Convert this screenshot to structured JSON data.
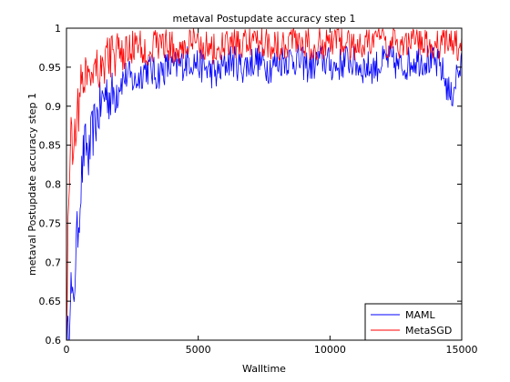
{
  "chart_data": {
    "type": "line",
    "title": "metaval Postupdate accuracy step 1",
    "xlabel": "Walltime",
    "ylabel": "metaval Postupdate accuracy step 1",
    "xlim": [
      0,
      15000
    ],
    "ylim": [
      0.6,
      1.0
    ],
    "x_ticks": [
      0,
      5000,
      10000,
      15000
    ],
    "x_tick_labels": [
      "0",
      "5000",
      "10000",
      "15000"
    ],
    "y_ticks": [
      0.6,
      0.65,
      0.7,
      0.75,
      0.8,
      0.85,
      0.9,
      0.95,
      1.0
    ],
    "y_tick_labels": [
      "0.6",
      "0.65",
      "0.7",
      "0.75",
      "0.8",
      "0.85",
      "0.9",
      "0.95",
      "1"
    ],
    "grid": false,
    "legend_position": "bottom-right",
    "series": [
      {
        "name": "MAML",
        "color": "#0000ff",
        "x": [
          0,
          80,
          150,
          250,
          350,
          450,
          550,
          650,
          750,
          850,
          950,
          1100,
          1300,
          1500,
          1700,
          2000,
          2300,
          2600,
          3000,
          3400,
          3800,
          4200,
          4700,
          5200,
          5700,
          6200,
          6700,
          7200,
          7700,
          8200,
          8700,
          9200,
          9700,
          10200,
          10700,
          11200,
          11700,
          12200,
          12700,
          13200,
          13700,
          14200,
          14600,
          14800,
          15000
        ],
        "values": [
          0.6,
          0.6,
          0.68,
          0.63,
          0.71,
          0.75,
          0.8,
          0.84,
          0.85,
          0.83,
          0.86,
          0.88,
          0.9,
          0.92,
          0.91,
          0.93,
          0.94,
          0.93,
          0.95,
          0.94,
          0.95,
          0.95,
          0.96,
          0.95,
          0.94,
          0.96,
          0.95,
          0.96,
          0.95,
          0.96,
          0.96,
          0.95,
          0.96,
          0.95,
          0.96,
          0.95,
          0.95,
          0.96,
          0.95,
          0.96,
          0.96,
          0.95,
          0.91,
          0.94,
          0.95
        ]
      },
      {
        "name": "MetaSGD",
        "color": "#ff0000",
        "x": [
          0,
          80,
          150,
          250,
          350,
          450,
          550,
          650,
          750,
          850,
          950,
          1100,
          1300,
          1500,
          1700,
          2000,
          2300,
          2600,
          3000,
          3400,
          3800,
          4200,
          4700,
          5200,
          5700,
          6200,
          6700,
          7200,
          7700,
          8200,
          8700,
          9200,
          9700,
          10200,
          10700,
          11200,
          11700,
          12200,
          12700,
          13200,
          13700,
          14200,
          14600,
          14800,
          15000
        ],
        "values": [
          0.6,
          0.79,
          0.86,
          0.85,
          0.88,
          0.9,
          0.92,
          0.94,
          0.95,
          0.94,
          0.95,
          0.96,
          0.95,
          0.96,
          0.97,
          0.96,
          0.97,
          0.98,
          0.97,
          0.98,
          0.98,
          0.97,
          0.98,
          0.98,
          0.97,
          0.98,
          0.98,
          0.99,
          0.98,
          0.98,
          0.99,
          0.98,
          0.98,
          0.99,
          0.98,
          0.98,
          0.99,
          0.98,
          0.98,
          0.99,
          0.98,
          0.98,
          0.99,
          0.98,
          0.97
        ]
      }
    ]
  }
}
